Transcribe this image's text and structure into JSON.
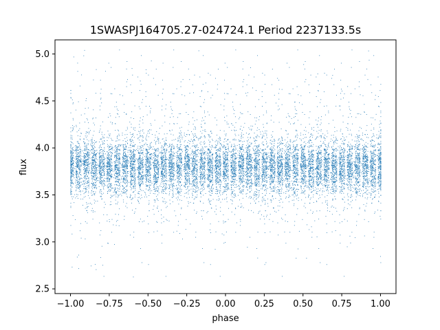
{
  "chart_data": {
    "type": "scatter",
    "title": "1SWASPJ164705.27-024724.1 Period 2237133.5s",
    "xlabel": "phase",
    "ylabel": "flux",
    "xlim": [
      -1.1,
      1.1
    ],
    "ylim": [
      2.45,
      5.15
    ],
    "xticks": [
      -1.0,
      -0.75,
      -0.5,
      -0.25,
      0.0,
      0.25,
      0.5,
      0.75,
      1.0
    ],
    "xtick_labels": [
      "−1.00",
      "−0.75",
      "−0.50",
      "−0.25",
      "0.00",
      "0.25",
      "0.50",
      "0.75",
      "1.00"
    ],
    "yticks": [
      2.5,
      3.0,
      3.5,
      4.0,
      4.5,
      5.0
    ],
    "ytick_labels": [
      "2.5",
      "3.0",
      "3.5",
      "4.0",
      "4.5",
      "5.0"
    ],
    "grid": false,
    "marker_color": "#1f77b4",
    "series": [
      {
        "description_of_distribution": "dense phase-folded light curve repeated over two cycles",
        "x_range": [
          -1.0,
          1.0
        ],
        "y_center": 3.8,
        "y_core_range": [
          3.5,
          4.1
        ],
        "y_full_range": [
          2.6,
          5.05
        ],
        "clumps_x": [
          -1.0,
          -0.95,
          -0.9,
          -0.85,
          -0.8,
          -0.75,
          -0.7,
          -0.65,
          -0.6,
          -0.55,
          -0.5,
          -0.45,
          -0.4,
          -0.35,
          -0.3,
          -0.25,
          -0.2,
          -0.15,
          -0.1,
          -0.05,
          0.0,
          0.05,
          0.1,
          0.15,
          0.2,
          0.25,
          0.3,
          0.35,
          0.4,
          0.45,
          0.5,
          0.55,
          0.6,
          0.65,
          0.7,
          0.75,
          0.8,
          0.85,
          0.9,
          0.95,
          1.0
        ]
      }
    ]
  }
}
